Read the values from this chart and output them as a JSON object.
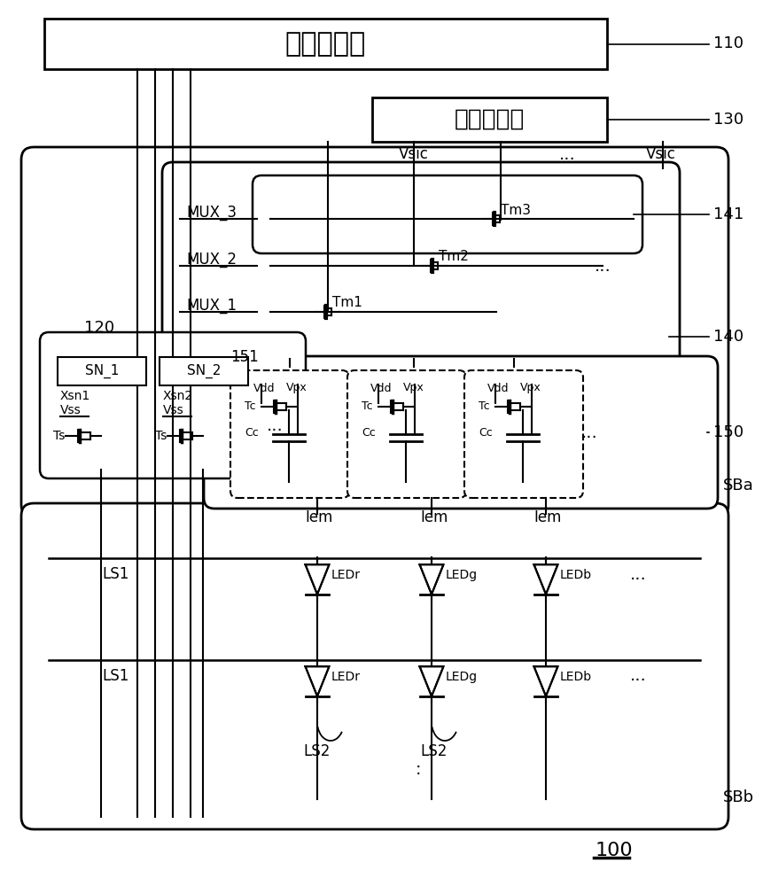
{
  "bg_color": "#ffffff",
  "lc": "#000000",
  "tc_label": "时序控制器",
  "sd_label": "源极驱动器",
  "ref110": "110",
  "ref120": "120",
  "ref130": "130",
  "ref140": "140",
  "ref141": "141",
  "ref150": "150",
  "ref151": "151",
  "ref100": "100",
  "sba": "SBa",
  "sbb": "SBb",
  "vsic": "Vsic",
  "iem": "Iem",
  "ls1": "LS1",
  "ls2": "LS2",
  "mux1": "MUX_1",
  "mux2": "MUX_2",
  "mux3": "MUX_3",
  "tm1": "Tm1",
  "tm2": "Tm2",
  "tm3": "Tm3",
  "sn1_label": "SN_1",
  "sn2_label": "SN_2",
  "xsn1": "Xsn1",
  "xsn2": "Xsn2",
  "vss": "Vss",
  "ts": "Ts",
  "vdd": "Vdd",
  "vpx": "Vpx",
  "tc_c": "Tc",
  "cc": "Cc",
  "ledr": "LEDr",
  "ledg": "LEDg",
  "ledb": "LEDb",
  "dots": "..."
}
